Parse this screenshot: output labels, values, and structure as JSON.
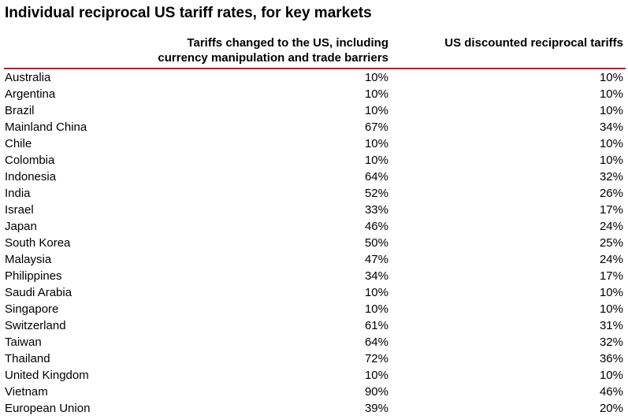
{
  "chart_data": {
    "type": "table",
    "title": "Individual reciprocal US tariff rates, for key markets",
    "columns": [
      "",
      "Tariffs changed to the US, including currency manipulation and trade barriers",
      "US discounted reciprocal tariffs"
    ],
    "column_lines": [
      [
        "Tariffs changed to the US, including",
        "currency manipulation and trade barriers"
      ],
      [
        "US discounted reciprocal tariffs"
      ]
    ],
    "rows": [
      {
        "market": "Australia",
        "tariffs_to_us": "10%",
        "us_reciprocal": "10%"
      },
      {
        "market": "Argentina",
        "tariffs_to_us": "10%",
        "us_reciprocal": "10%"
      },
      {
        "market": "Brazil",
        "tariffs_to_us": "10%",
        "us_reciprocal": "10%"
      },
      {
        "market": "Mainland China",
        "tariffs_to_us": "67%",
        "us_reciprocal": "34%"
      },
      {
        "market": "Chile",
        "tariffs_to_us": "10%",
        "us_reciprocal": "10%"
      },
      {
        "market": "Colombia",
        "tariffs_to_us": "10%",
        "us_reciprocal": "10%"
      },
      {
        "market": "Indonesia",
        "tariffs_to_us": "64%",
        "us_reciprocal": "32%"
      },
      {
        "market": "India",
        "tariffs_to_us": "52%",
        "us_reciprocal": "26%"
      },
      {
        "market": "Israel",
        "tariffs_to_us": "33%",
        "us_reciprocal": "17%"
      },
      {
        "market": "Japan",
        "tariffs_to_us": "46%",
        "us_reciprocal": "24%"
      },
      {
        "market": "South Korea",
        "tariffs_to_us": "50%",
        "us_reciprocal": "25%"
      },
      {
        "market": "Malaysia",
        "tariffs_to_us": "47%",
        "us_reciprocal": "24%"
      },
      {
        "market": "Philippines",
        "tariffs_to_us": "34%",
        "us_reciprocal": "17%"
      },
      {
        "market": "Saudi Arabia",
        "tariffs_to_us": "10%",
        "us_reciprocal": "10%"
      },
      {
        "market": "Singapore",
        "tariffs_to_us": "10%",
        "us_reciprocal": "10%"
      },
      {
        "market": "Switzerland",
        "tariffs_to_us": "61%",
        "us_reciprocal": "31%"
      },
      {
        "market": "Taiwan",
        "tariffs_to_us": "64%",
        "us_reciprocal": "32%"
      },
      {
        "market": "Thailand",
        "tariffs_to_us": "72%",
        "us_reciprocal": "36%"
      },
      {
        "market": "United Kingdom",
        "tariffs_to_us": "10%",
        "us_reciprocal": "10%"
      },
      {
        "market": "Vietnam",
        "tariffs_to_us": "90%",
        "us_reciprocal": "46%"
      },
      {
        "market": "European Union",
        "tariffs_to_us": "39%",
        "us_reciprocal": "20%"
      }
    ]
  },
  "colors": {
    "rule": "#c0162d",
    "text": "#000000",
    "background": "#ffffff"
  }
}
